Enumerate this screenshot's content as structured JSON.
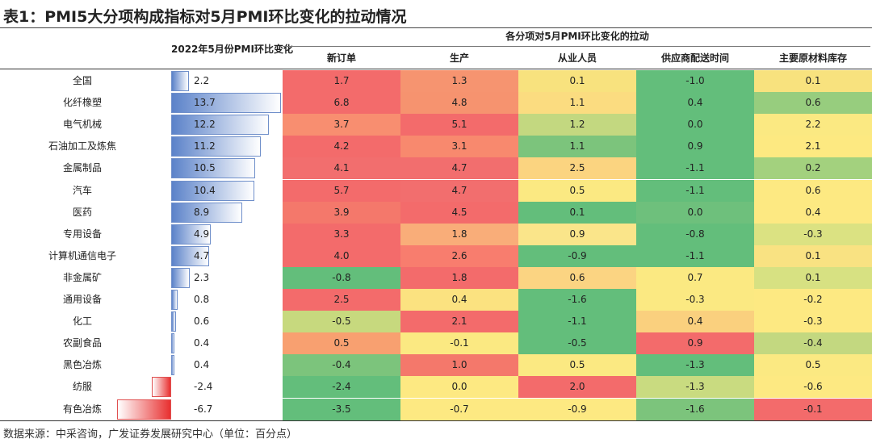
{
  "title": "表1：PMI5大分项构成指标对5月PMI环比变化的拉动情况",
  "source": "数据来源：中采咨询，广发证券发展研究中心（单位：百分点）",
  "chart_data": {
    "type": "table",
    "left_header": "2022年5月份PMI环比变化",
    "super_header": "各分项对5月PMI环比变化的拉动",
    "columns": [
      "新订单",
      "生产",
      "从业人员",
      "供应商配送时间",
      "主要原材料库存"
    ],
    "categories": [
      "全国",
      "化纤橡塑",
      "电气机械",
      "石油加工及炼焦",
      "金属制品",
      "汽车",
      "医药",
      "专用设备",
      "计算机通信电子",
      "非金属矿",
      "通用设备",
      "化工",
      "农副食品",
      "黑色冶炼",
      "纺服",
      "有色冶炼"
    ],
    "pmi_change": [
      "2.2",
      "13.7",
      "12.2",
      "11.2",
      "10.5",
      "10.4",
      "8.9",
      "4.9",
      "4.7",
      "2.3",
      "0.8",
      "0.6",
      "0.4",
      "0.4",
      "-2.4",
      "-6.7"
    ],
    "cells": [
      [
        "1.7",
        "1.3",
        "0.1",
        "-1.0",
        "0.1"
      ],
      [
        "6.8",
        "4.8",
        "1.1",
        "0.4",
        "0.6"
      ],
      [
        "3.7",
        "5.1",
        "1.2",
        "0.0",
        "2.2"
      ],
      [
        "4.2",
        "3.1",
        "1.1",
        "0.9",
        "2.1"
      ],
      [
        "4.1",
        "4.7",
        "2.5",
        "-1.1",
        "0.2"
      ],
      [
        "5.7",
        "4.7",
        "0.5",
        "-1.1",
        "0.6"
      ],
      [
        "3.9",
        "4.5",
        "0.1",
        "0.0",
        "0.4"
      ],
      [
        "3.3",
        "1.8",
        "0.9",
        "-0.8",
        "-0.3"
      ],
      [
        "4.0",
        "2.6",
        "-0.9",
        "-1.1",
        "0.1"
      ],
      [
        "-0.8",
        "1.8",
        "0.6",
        "0.7",
        "0.1"
      ],
      [
        "2.5",
        "0.4",
        "-1.6",
        "-0.3",
        "-0.2"
      ],
      [
        "-0.5",
        "2.1",
        "-1.1",
        "0.4",
        "-0.3"
      ],
      [
        "0.5",
        "-0.1",
        "-0.5",
        "0.9",
        "-0.4"
      ],
      [
        "-0.4",
        "1.0",
        "0.5",
        "-1.3",
        "0.5"
      ],
      [
        "-2.4",
        "0.0",
        "2.0",
        "-1.3",
        "-0.6"
      ],
      [
        "-3.5",
        "-0.7",
        "-0.9",
        "-1.6",
        "-0.1"
      ]
    ],
    "cell_colors": [
      [
        "#f36b6b",
        "#f69470",
        "#f8e27e",
        "#63be7b",
        "#f8e27e"
      ],
      [
        "#f36b6b",
        "#f6936f",
        "#fbdc80",
        "#63be7b",
        "#97cd7e"
      ],
      [
        "#f88e70",
        "#f36b6b",
        "#c3d880",
        "#63be7b",
        "#fbe982"
      ],
      [
        "#f36b6b",
        "#f8896e",
        "#7cc47c",
        "#63be7b",
        "#fde981"
      ],
      [
        "#f26e6e",
        "#f26e6e",
        "#fbd480",
        "#63be7b",
        "#a3d17e"
      ],
      [
        "#f36b6b",
        "#f26e6e",
        "#fbe982",
        "#63be7b",
        "#fde982"
      ],
      [
        "#f4786b",
        "#f36b6b",
        "#63be7b",
        "#6ec07c",
        "#fde982"
      ],
      [
        "#f36b6b",
        "#f9ad79",
        "#fae58a",
        "#63be7b",
        "#dbe282"
      ],
      [
        "#f36b6b",
        "#f87d6e",
        "#63be7b",
        "#63be7b",
        "#f9e282"
      ],
      [
        "#63be7b",
        "#f36b6b",
        "#fbd482",
        "#fbe982",
        "#d7e182"
      ],
      [
        "#f36b6b",
        "#fbe280",
        "#63be7b",
        "#fbe982",
        "#fde982"
      ],
      [
        "#c7d97e",
        "#f36b6b",
        "#63be7b",
        "#fad07e",
        "#fde982"
      ],
      [
        "#f8a070",
        "#fbe982",
        "#63be7b",
        "#f36b6b",
        "#c3d880"
      ],
      [
        "#7cc47c",
        "#f4786b",
        "#fbe982",
        "#63be7b",
        "#fbe982"
      ],
      [
        "#63be7b",
        "#fde982",
        "#f36b6b",
        "#c9db80",
        "#fde982"
      ],
      [
        "#63be7b",
        "#fde982",
        "#fde982",
        "#7cc47c",
        "#f36b6b"
      ]
    ],
    "bar_range": [
      -6.7,
      13.7
    ]
  }
}
